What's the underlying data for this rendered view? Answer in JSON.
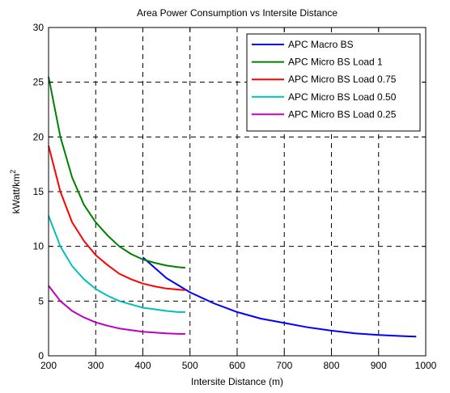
{
  "chart_data": {
    "type": "line",
    "title": "Area Power Consumption vs Intersite Distance",
    "xlabel": "Intersite Distance (m)",
    "ylabel": "kWatt/km",
    "ylabel_superscript": "2",
    "xlim": [
      200,
      1000
    ],
    "ylim": [
      0,
      30
    ],
    "xticks": [
      200,
      300,
      400,
      500,
      600,
      700,
      800,
      900,
      1000
    ],
    "yticks": [
      0,
      5,
      10,
      15,
      20,
      25,
      30
    ],
    "grid": true,
    "legend_position": "top-right",
    "series": [
      {
        "name": "APC Macro BS",
        "color": "#0000ff",
        "x": [
          400,
          450,
          500,
          550,
          600,
          650,
          700,
          750,
          800,
          850,
          900,
          950,
          980
        ],
        "y": [
          9.0,
          7.1,
          5.8,
          4.8,
          4.0,
          3.4,
          3.0,
          2.6,
          2.3,
          2.05,
          1.9,
          1.8,
          1.75
        ]
      },
      {
        "name": "APC Micro BS Load 1",
        "color": "#008000",
        "x": [
          200,
          225,
          250,
          275,
          300,
          325,
          350,
          375,
          400,
          425,
          450,
          475,
          490
        ],
        "y": [
          25.5,
          20.0,
          16.3,
          13.8,
          12.2,
          11.0,
          10.0,
          9.3,
          8.8,
          8.5,
          8.25,
          8.1,
          8.05
        ]
      },
      {
        "name": "APC Micro BS Load 0.75",
        "color": "#ff0000",
        "x": [
          200,
          225,
          250,
          275,
          300,
          325,
          350,
          375,
          400,
          425,
          450,
          475,
          490
        ],
        "y": [
          19.2,
          15.0,
          12.2,
          10.5,
          9.2,
          8.3,
          7.5,
          7.0,
          6.6,
          6.35,
          6.15,
          6.05,
          6.0
        ]
      },
      {
        "name": "APC Micro BS Load 0.50",
        "color": "#00bfbf",
        "x": [
          200,
          225,
          250,
          275,
          300,
          325,
          350,
          375,
          400,
          425,
          450,
          475,
          490
        ],
        "y": [
          12.8,
          10.0,
          8.2,
          7.0,
          6.1,
          5.5,
          5.0,
          4.7,
          4.4,
          4.25,
          4.1,
          4.0,
          4.0
        ]
      },
      {
        "name": "APC Micro BS Load 0.25",
        "color": "#bf00bf",
        "x": [
          200,
          225,
          250,
          275,
          300,
          325,
          350,
          375,
          400,
          425,
          450,
          475,
          490
        ],
        "y": [
          6.4,
          5.0,
          4.1,
          3.5,
          3.05,
          2.75,
          2.5,
          2.35,
          2.2,
          2.12,
          2.05,
          2.0,
          2.0
        ]
      }
    ]
  }
}
